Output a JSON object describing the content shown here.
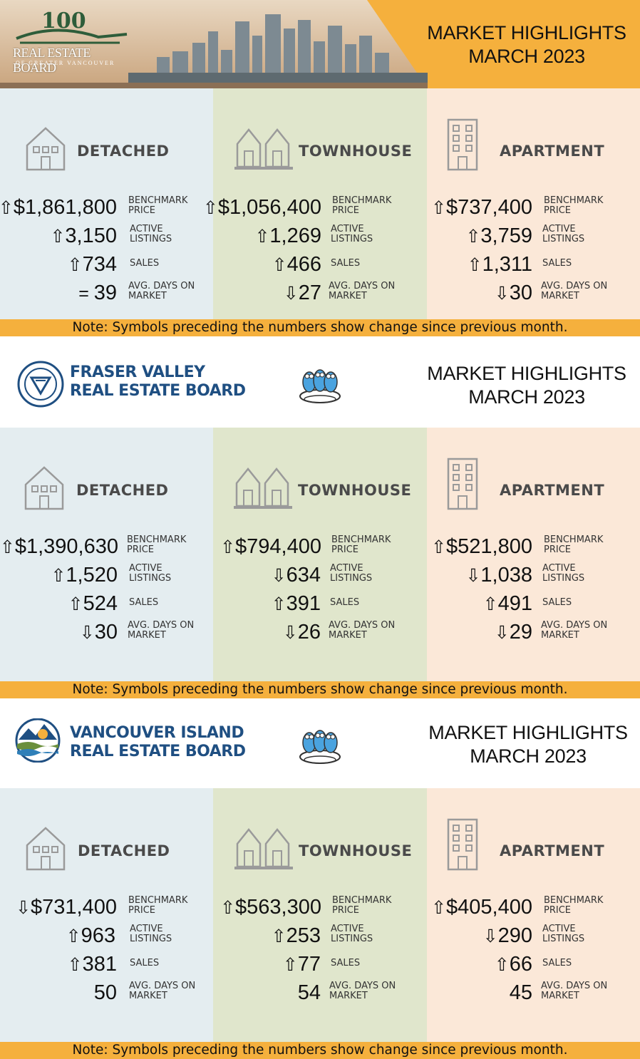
{
  "footnote": "Note: Symbols preceding the numbers show change since previous month.",
  "colors": {
    "accent": "#f5b03d",
    "detached_bg": "#e4edf0",
    "townhouse_bg": "#e0e6cc",
    "apartment_bg": "#fbe8d8",
    "board_blue": "#1f4f82"
  },
  "sections": [
    {
      "board_logo_line1": "REAL ESTATE BOARD",
      "board_logo_line2": "OF GREATER VANCOUVER",
      "board_logo_badge": "100",
      "title_line1": "MARKET HIGHLIGHTS",
      "title_line2": "MARCH 2023",
      "columns": [
        {
          "label": "DETACHED",
          "icon": "house-icon",
          "rows": [
            {
              "sym": "⇧",
              "value": "$1,861,800",
              "label1": "BENCHMARK",
              "label2": "PRICE"
            },
            {
              "sym": "⇧",
              "value": "3,150",
              "label1": "ACTIVE",
              "label2": "LISTINGS"
            },
            {
              "sym": "⇧",
              "value": "734",
              "label1": "SALES",
              "label2": ""
            },
            {
              "sym": "= ",
              "value": "39",
              "label1": "AVG. DAYS ON",
              "label2": "MARKET"
            }
          ]
        },
        {
          "label": "TOWNHOUSE",
          "icon": "townhouse-icon",
          "rows": [
            {
              "sym": "⇧",
              "value": "$1,056,400",
              "label1": "BENCHMARK",
              "label2": "PRICE"
            },
            {
              "sym": "⇧",
              "value": "1,269",
              "label1": "ACTIVE",
              "label2": "LISTINGS"
            },
            {
              "sym": "⇧",
              "value": "466",
              "label1": "SALES",
              "label2": ""
            },
            {
              "sym": "⇩",
              "value": "27",
              "label1": "AVG. DAYS ON",
              "label2": "MARKET"
            }
          ]
        },
        {
          "label": "APARTMENT",
          "icon": "apartment-icon",
          "rows": [
            {
              "sym": "⇧",
              "value": "$737,400",
              "label1": "BENCHMARK",
              "label2": "PRICE"
            },
            {
              "sym": "⇧",
              "value": "3,759",
              "label1": "ACTIVE",
              "label2": "LISTINGS"
            },
            {
              "sym": "⇧",
              "value": "1,311",
              "label1": "SALES",
              "label2": ""
            },
            {
              "sym": "⇩",
              "value": "30",
              "label1": "AVG. DAYS ON",
              "label2": "MARKET"
            }
          ]
        }
      ]
    },
    {
      "board_logo_line1": "FRASER VALLEY",
      "board_logo_line2": "REAL ESTATE BOARD",
      "title_line1": "MARKET HIGHLIGHTS",
      "title_line2": "MARCH 2023",
      "columns": [
        {
          "label": "DETACHED",
          "icon": "house-icon",
          "rows": [
            {
              "sym": "⇧",
              "value": "$1,390,630",
              "label1": "BENCHMARK",
              "label2": "PRICE"
            },
            {
              "sym": "⇧",
              "value": "1,520",
              "label1": "ACTIVE",
              "label2": "LISTINGS"
            },
            {
              "sym": "⇧",
              "value": "524",
              "label1": "SALES",
              "label2": ""
            },
            {
              "sym": "⇩",
              "value": "30",
              "label1": "AVG. DAYS ON",
              "label2": "MARKET"
            }
          ]
        },
        {
          "label": "TOWNHOUSE",
          "icon": "townhouse-icon",
          "rows": [
            {
              "sym": "⇧",
              "value": "$794,400",
              "label1": "BENCHMARK",
              "label2": "PRICE"
            },
            {
              "sym": "⇩",
              "value": "634",
              "label1": "ACTIVE",
              "label2": "LISTINGS"
            },
            {
              "sym": "⇧",
              "value": "391",
              "label1": "SALES",
              "label2": ""
            },
            {
              "sym": "⇩",
              "value": "26",
              "label1": "AVG. DAYS ON",
              "label2": "MARKET"
            }
          ]
        },
        {
          "label": "APARTMENT",
          "icon": "apartment-icon",
          "rows": [
            {
              "sym": "⇧",
              "value": "$521,800",
              "label1": "BENCHMARK",
              "label2": "PRICE"
            },
            {
              "sym": "⇩",
              "value": "1,038",
              "label1": "ACTIVE",
              "label2": "LISTINGS"
            },
            {
              "sym": "⇧",
              "value": "491",
              "label1": "SALES",
              "label2": ""
            },
            {
              "sym": "⇩",
              "value": "29",
              "label1": "AVG. DAYS ON",
              "label2": "MARKET"
            }
          ]
        }
      ]
    },
    {
      "board_logo_line1": "VANCOUVER ISLAND",
      "board_logo_line2": "REAL ESTATE BOARD",
      "title_line1": "MARKET HIGHLIGHTS",
      "title_line2": "MARCH 2023",
      "columns": [
        {
          "label": "DETACHED",
          "icon": "house-icon",
          "rows": [
            {
              "sym": "⇩",
              "value": "$731,400",
              "label1": "BENCHMARK",
              "label2": "PRICE"
            },
            {
              "sym": "⇧",
              "value": "963",
              "label1": "ACTIVE",
              "label2": "LISTINGS"
            },
            {
              "sym": "⇧",
              "value": "381",
              "label1": "SALES",
              "label2": ""
            },
            {
              "sym": "",
              "value": "50",
              "label1": "AVG. DAYS ON",
              "label2": "MARKET"
            }
          ]
        },
        {
          "label": "TOWNHOUSE",
          "icon": "townhouse-icon",
          "rows": [
            {
              "sym": "⇧",
              "value": "$563,300",
              "label1": "BENCHMARK",
              "label2": "PRICE"
            },
            {
              "sym": "⇧",
              "value": "253",
              "label1": "ACTIVE",
              "label2": "LISTINGS"
            },
            {
              "sym": "⇧",
              "value": "77",
              "label1": "SALES",
              "label2": ""
            },
            {
              "sym": "",
              "value": "54",
              "label1": "AVG. DAYS ON",
              "label2": "MARKET"
            }
          ]
        },
        {
          "label": "APARTMENT",
          "icon": "apartment-icon",
          "rows": [
            {
              "sym": "⇧",
              "value": "$405,400",
              "label1": "BENCHMARK",
              "label2": "PRICE"
            },
            {
              "sym": "⇩",
              "value": "290",
              "label1": "ACTIVE",
              "label2": "LISTINGS"
            },
            {
              "sym": "⇧",
              "value": "66",
              "label1": "SALES",
              "label2": ""
            },
            {
              "sym": "",
              "value": "45",
              "label1": "AVG. DAYS ON",
              "label2": "MARKET"
            }
          ]
        }
      ]
    }
  ]
}
